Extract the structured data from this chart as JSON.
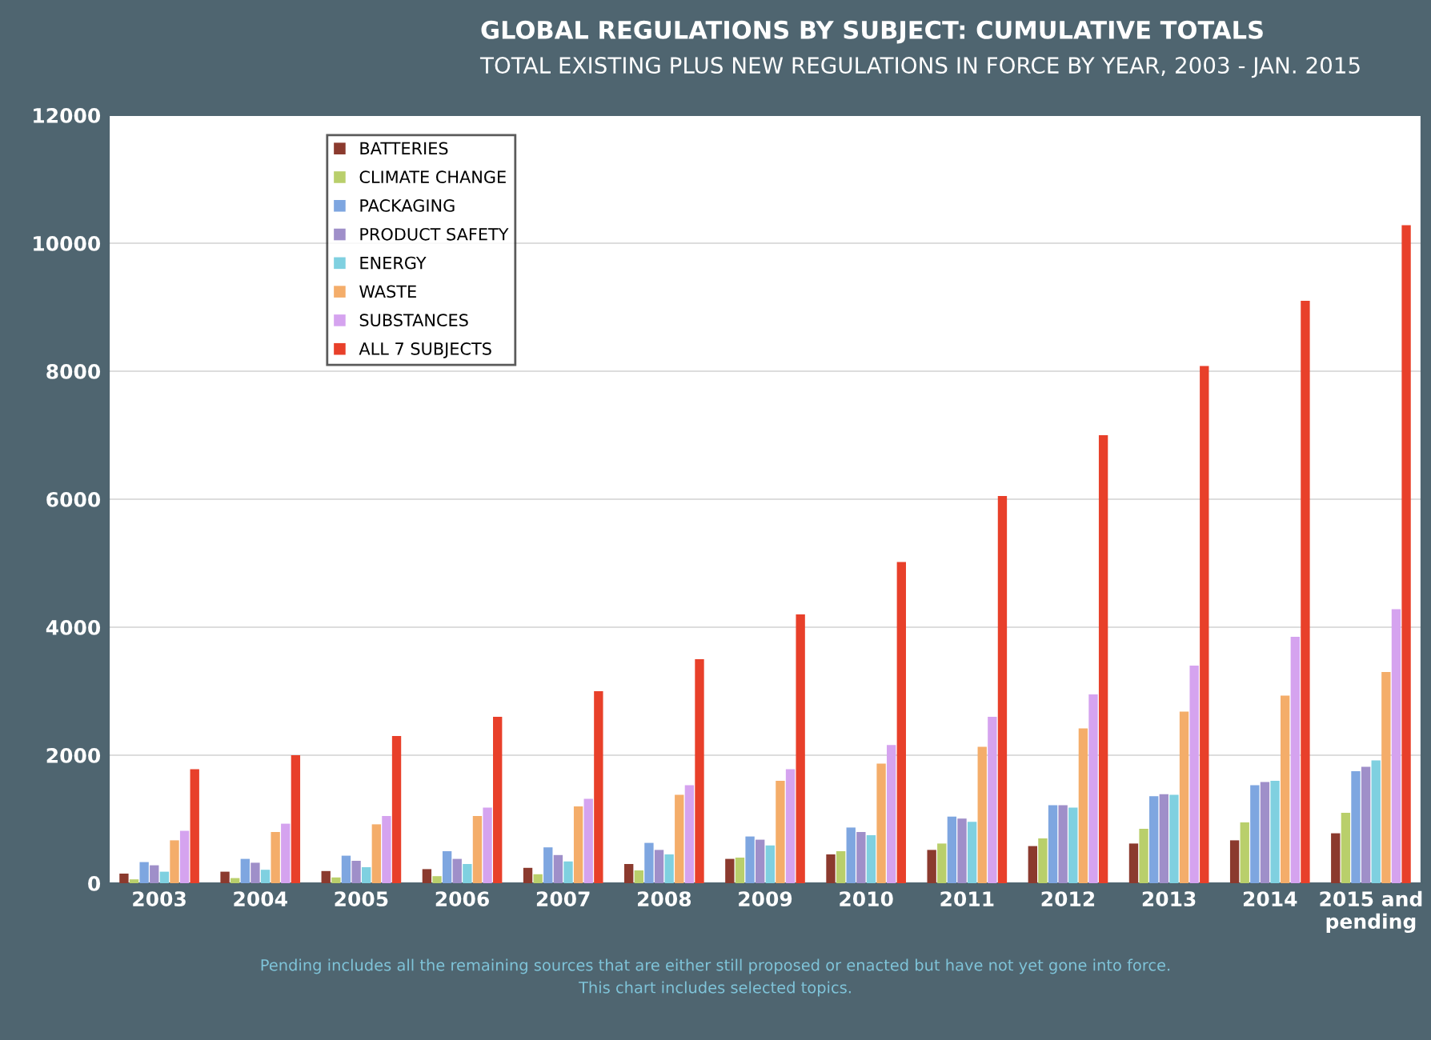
{
  "chart_data": {
    "type": "bar",
    "title": "GLOBAL REGULATIONS BY SUBJECT: CUMULATIVE TOTALS",
    "subtitle": "TOTAL EXISTING PLUS NEW REGULATIONS IN FORCE BY YEAR, 2003 - JAN. 2015",
    "categories": [
      "2003",
      "2004",
      "2005",
      "2006",
      "2007",
      "2008",
      "2009",
      "2010",
      "2011",
      "2012",
      "2013",
      "2014",
      "2015 and\npending"
    ],
    "series": [
      {
        "name": "BATTERIES",
        "color": "#8b3a2e",
        "values": [
          150,
          180,
          190,
          220,
          240,
          300,
          380,
          450,
          520,
          580,
          620,
          670,
          780
        ]
      },
      {
        "name": "CLIMATE CHANGE",
        "color": "#b9cf6b",
        "values": [
          60,
          80,
          90,
          110,
          140,
          200,
          400,
          500,
          620,
          700,
          850,
          950,
          1100
        ]
      },
      {
        "name": "PACKAGING",
        "color": "#7ea6e0",
        "values": [
          330,
          380,
          430,
          500,
          560,
          630,
          730,
          870,
          1040,
          1220,
          1360,
          1530,
          1750
        ]
      },
      {
        "name": "PRODUCT SAFETY",
        "color": "#9f8fc9",
        "values": [
          280,
          320,
          350,
          380,
          440,
          520,
          680,
          800,
          1010,
          1220,
          1390,
          1580,
          1820
        ]
      },
      {
        "name": "ENERGY",
        "color": "#7fd0e0",
        "values": [
          180,
          210,
          250,
          300,
          340,
          450,
          590,
          750,
          960,
          1180,
          1380,
          1600,
          1920
        ]
      },
      {
        "name": "WASTE",
        "color": "#f4ad6a",
        "values": [
          670,
          800,
          920,
          1050,
          1200,
          1380,
          1600,
          1870,
          2130,
          2420,
          2680,
          2930,
          3300
        ]
      },
      {
        "name": "SUBSTANCES",
        "color": "#d5a3ef",
        "values": [
          820,
          930,
          1050,
          1180,
          1320,
          1530,
          1780,
          2160,
          2600,
          2950,
          3400,
          3850,
          4280
        ]
      },
      {
        "name": "ALL 7 SUBJECTS",
        "color": "#e8402a",
        "values": [
          1780,
          2000,
          2300,
          2600,
          3000,
          3500,
          4200,
          5020,
          6050,
          7000,
          8080,
          9100,
          10280
        ]
      }
    ],
    "ylim": [
      0,
      12000
    ],
    "yticks": [
      0,
      2000,
      4000,
      6000,
      8000,
      10000,
      12000
    ],
    "grid": "y",
    "legend": "top left",
    "annotations": [
      "Pending includes all the remaining sources that are either still proposed or enacted but have not yet gone into force.",
      "This chart includes selected topics."
    ]
  }
}
